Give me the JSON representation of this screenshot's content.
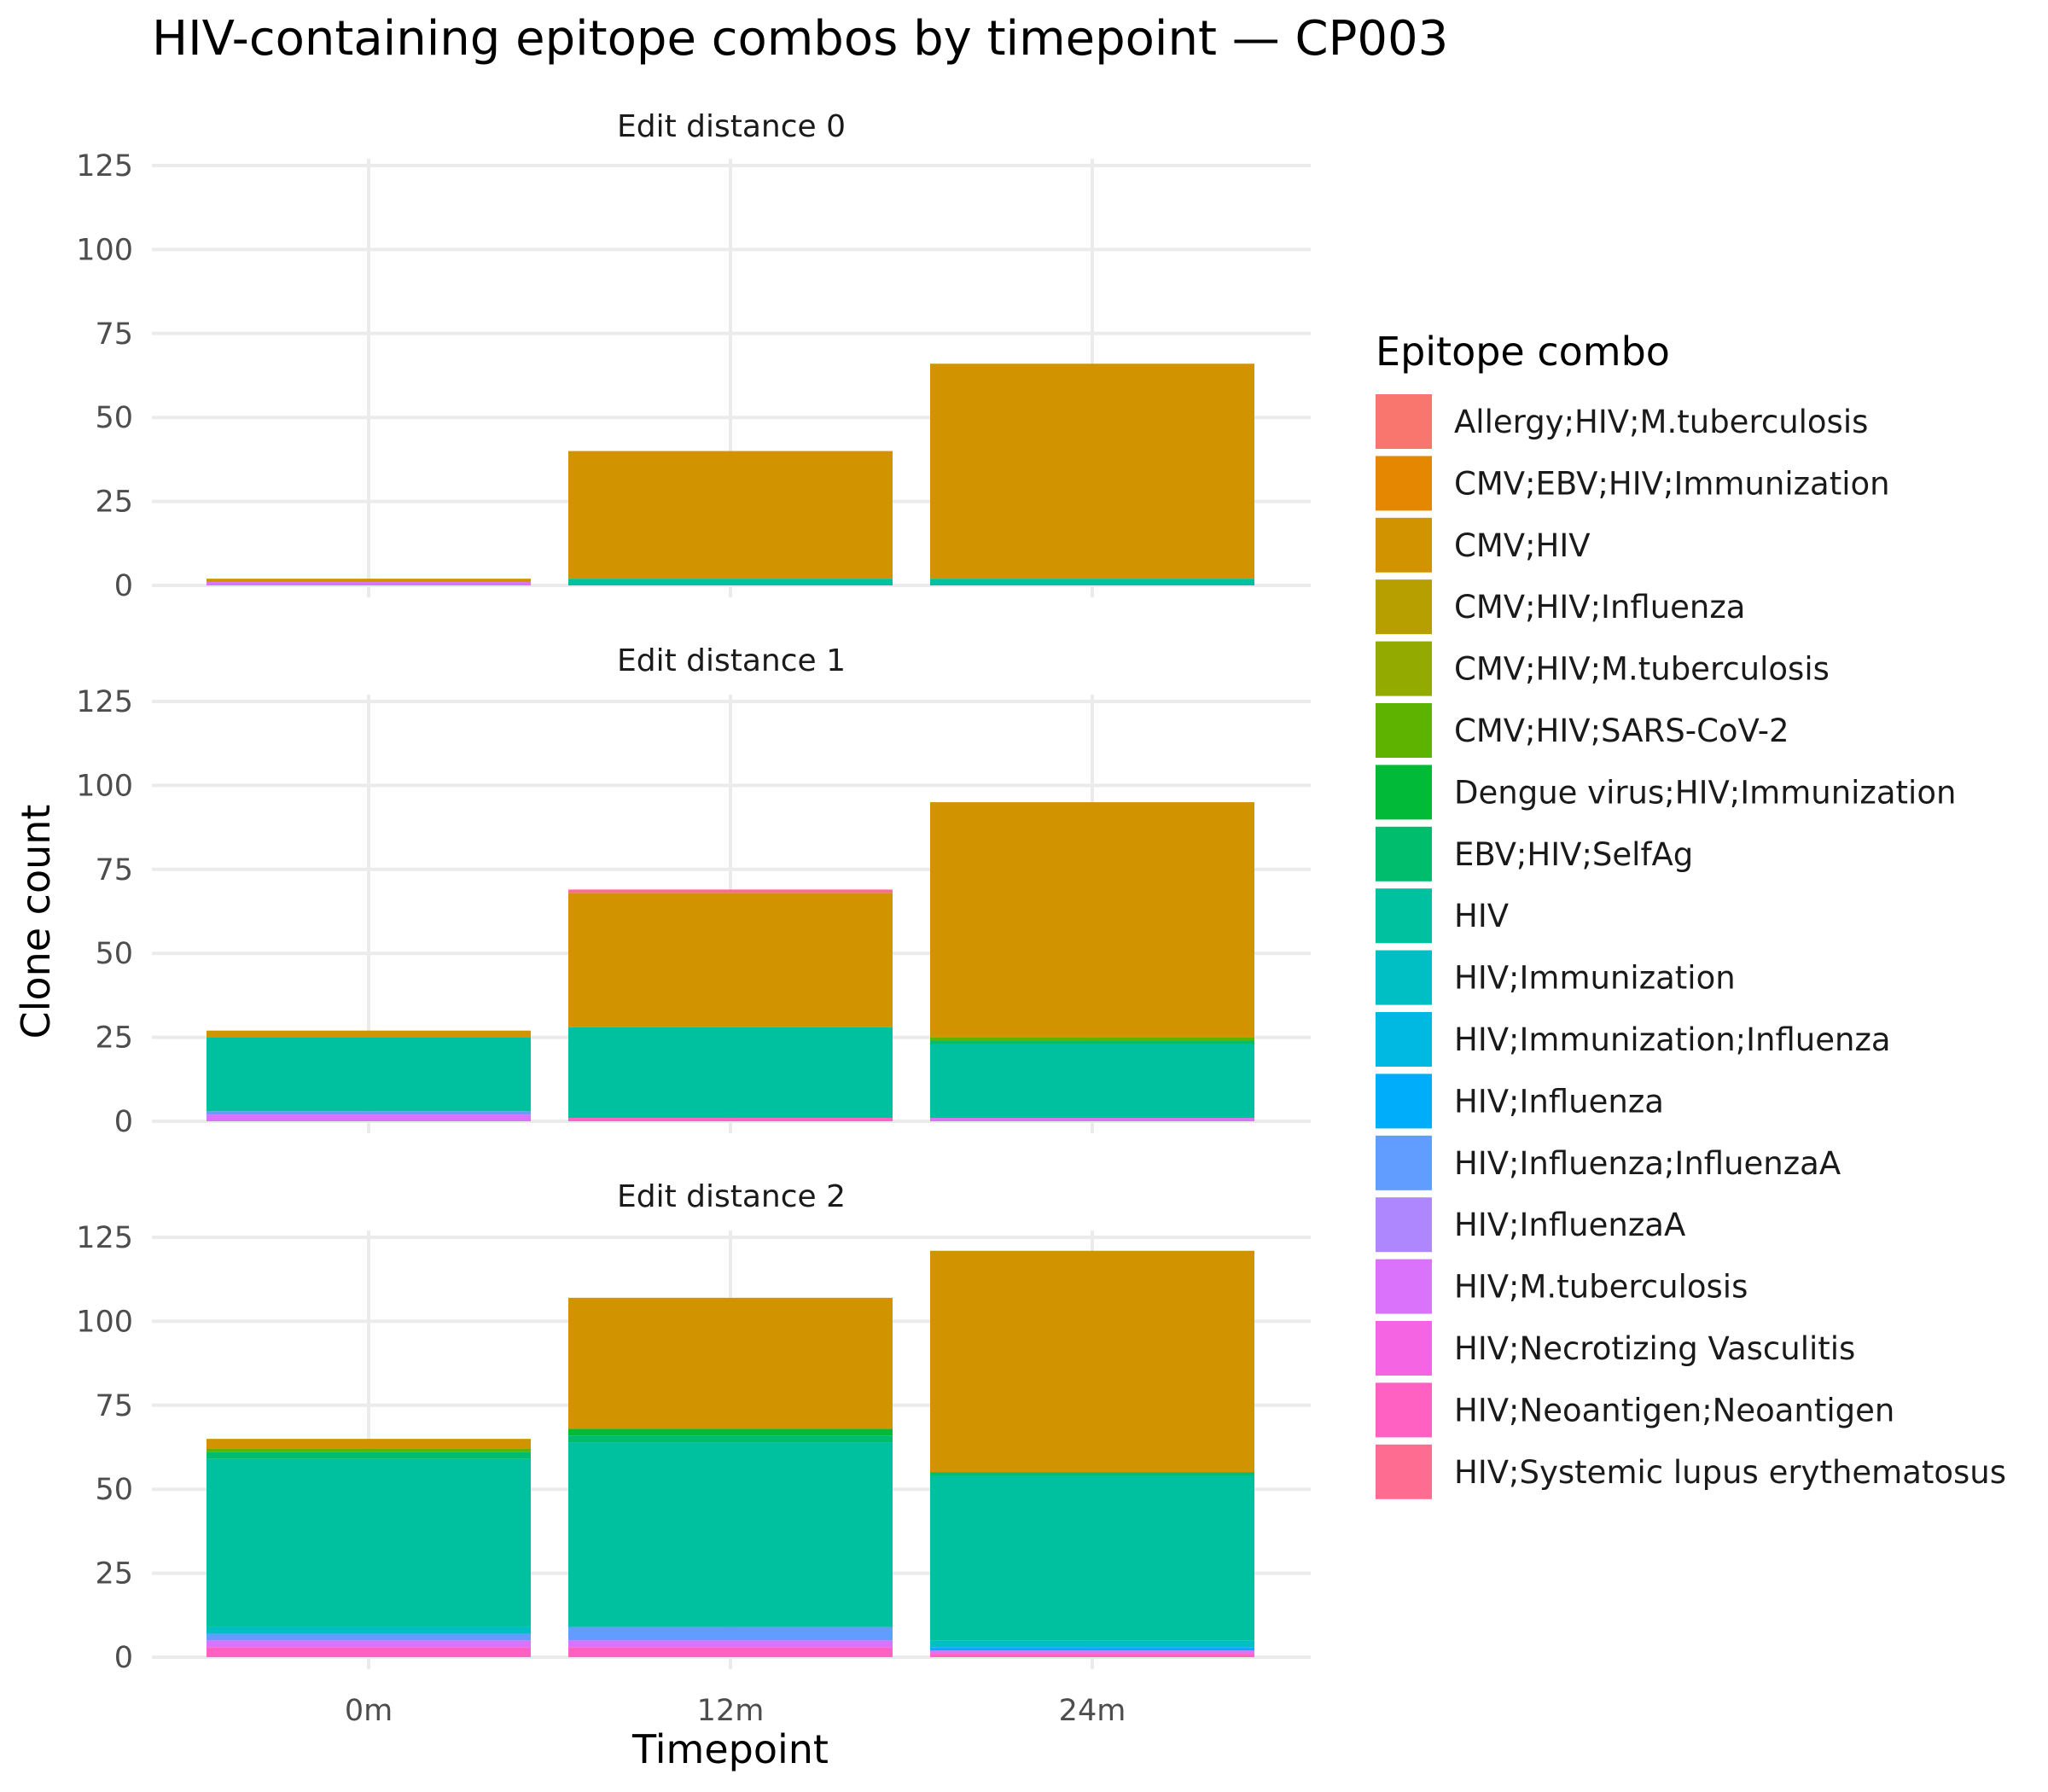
{
  "chart_data": {
    "type": "bar",
    "stacked": true,
    "title": "HIV-containing epitope combos by timepoint — CP003",
    "xlabel": "Timepoint",
    "ylabel": "Clone count",
    "ylim": [
      0,
      130
    ],
    "y_ticks": [
      "0",
      "25",
      "50",
      "75",
      "100",
      "125"
    ],
    "categories": [
      "0m",
      "12m",
      "24m"
    ],
    "grid": true,
    "legend": {
      "title": "Epitope combo",
      "position": "right",
      "items": [
        {
          "name": "Allergy;HIV;M.tuberculosis",
          "color": "#F8766D"
        },
        {
          "name": "CMV;EBV;HIV;Immunization",
          "color": "#E58700"
        },
        {
          "name": "CMV;HIV",
          "color": "#D19400"
        },
        {
          "name": "CMV;HIV;Influenza",
          "color": "#B79F00"
        },
        {
          "name": "CMV;HIV;M.tuberculosis",
          "color": "#93AA00"
        },
        {
          "name": "CMV;HIV;SARS-CoV-2",
          "color": "#5EB300"
        },
        {
          "name": "Dengue virus;HIV;Immunization",
          "color": "#00BA38"
        },
        {
          "name": "EBV;HIV;SelfAg",
          "color": "#00BD6D"
        },
        {
          "name": "HIV",
          "color": "#00C19F"
        },
        {
          "name": "HIV;Immunization",
          "color": "#00BFC4"
        },
        {
          "name": "HIV;Immunization;Influenza",
          "color": "#00B9E3"
        },
        {
          "name": "HIV;Influenza",
          "color": "#00ADFA"
        },
        {
          "name": "HIV;Influenza;InfluenzaA",
          "color": "#619CFF"
        },
        {
          "name": "HIV;InfluenzaA",
          "color": "#AE87FF"
        },
        {
          "name": "HIV;M.tuberculosis",
          "color": "#DB72FB"
        },
        {
          "name": "HIV;Necrotizing Vasculitis",
          "color": "#F564E3"
        },
        {
          "name": "HIV;Neoantigen;Neoantigen",
          "color": "#FF61C3"
        },
        {
          "name": "HIV;Systemic lupus erythematosus",
          "color": "#FF6C91"
        }
      ]
    },
    "panels": [
      {
        "label": "Edit distance 0",
        "stacks": [
          [
            {
              "series": "HIV;M.tuberculosis",
              "value": 1
            },
            {
              "series": "CMV;HIV",
              "value": 1
            }
          ],
          [
            {
              "series": "HIV",
              "value": 2
            },
            {
              "series": "CMV;HIV",
              "value": 38
            }
          ],
          [
            {
              "series": "HIV",
              "value": 2
            },
            {
              "series": "CMV;HIV",
              "value": 64
            }
          ]
        ]
      },
      {
        "label": "Edit distance 1",
        "stacks": [
          [
            {
              "series": "HIV;M.tuberculosis",
              "value": 2
            },
            {
              "series": "HIV;Influenza;InfluenzaA",
              "value": 1
            },
            {
              "series": "HIV",
              "value": 22
            },
            {
              "series": "CMV;HIV",
              "value": 2
            }
          ],
          [
            {
              "series": "HIV;Neoantigen;Neoantigen",
              "value": 1
            },
            {
              "series": "HIV",
              "value": 27
            },
            {
              "series": "CMV;HIV",
              "value": 40
            },
            {
              "series": "HIV;Systemic lupus erythematosus",
              "value": 1
            }
          ],
          [
            {
              "series": "HIV;M.tuberculosis",
              "value": 1
            },
            {
              "series": "HIV",
              "value": 22
            },
            {
              "series": "EBV;HIV;SelfAg",
              "value": 1
            },
            {
              "series": "CMV;HIV;SARS-CoV-2",
              "value": 1
            },
            {
              "series": "CMV;HIV",
              "value": 70
            }
          ]
        ]
      },
      {
        "label": "Edit distance 2",
        "stacks": [
          [
            {
              "series": "HIV;Neoantigen;Neoantigen",
              "value": 3
            },
            {
              "series": "HIV;M.tuberculosis",
              "value": 2
            },
            {
              "series": "HIV;Influenza;InfluenzaA",
              "value": 2
            },
            {
              "series": "HIV;Immunization",
              "value": 2
            },
            {
              "series": "HIV",
              "value": 50
            },
            {
              "series": "EBV;HIV;SelfAg",
              "value": 2
            },
            {
              "series": "CMV;HIV;SARS-CoV-2",
              "value": 1
            },
            {
              "series": "CMV;HIV",
              "value": 3
            }
          ],
          [
            {
              "series": "HIV;Neoantigen;Neoantigen",
              "value": 3
            },
            {
              "series": "HIV;M.tuberculosis",
              "value": 2
            },
            {
              "series": "HIV;Influenza;InfluenzaA",
              "value": 4
            },
            {
              "series": "HIV",
              "value": 55
            },
            {
              "series": "EBV;HIV;SelfAg",
              "value": 2
            },
            {
              "series": "Dengue virus;HIV;Immunization",
              "value": 2
            },
            {
              "series": "CMV;HIV",
              "value": 39
            }
          ],
          [
            {
              "series": "HIV;Neoantigen;Neoantigen",
              "value": 1
            },
            {
              "series": "HIV;M.tuberculosis",
              "value": 1
            },
            {
              "series": "HIV;Influenza",
              "value": 1
            },
            {
              "series": "HIV;Immunization",
              "value": 2
            },
            {
              "series": "HIV",
              "value": 49
            },
            {
              "series": "EBV;HIV;SelfAg",
              "value": 1
            },
            {
              "series": "CMV;HIV",
              "value": 66
            }
          ]
        ]
      }
    ]
  }
}
